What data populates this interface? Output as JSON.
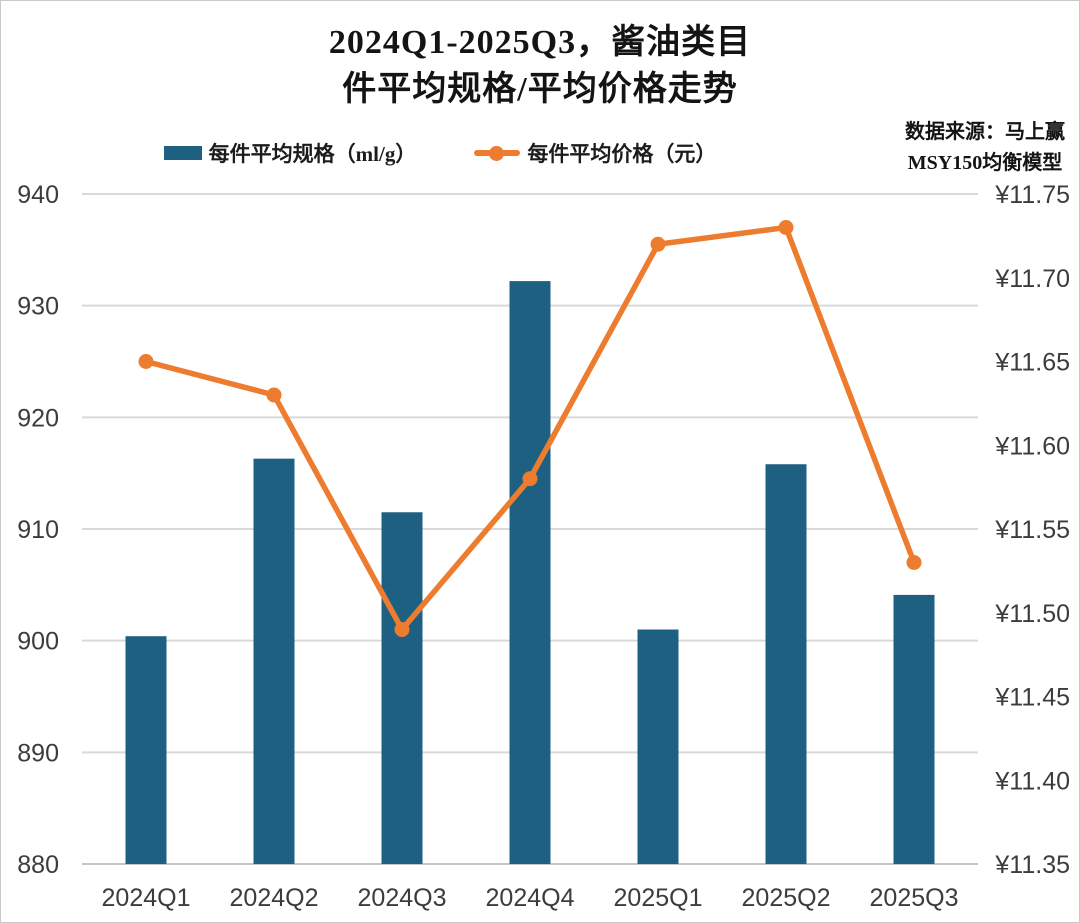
{
  "title": {
    "line1": "2024Q1-2025Q3，酱油类目",
    "line2": "件平均规格/平均价格走势"
  },
  "source": {
    "line1": "数据来源：马上赢",
    "line2": "MSY150均衡模型"
  },
  "legend": [
    {
      "label": "每件平均规格（ml/g）",
      "marker": "bar-swatch",
      "color": "#1E6082"
    },
    {
      "label": "每件平均价格（元）",
      "marker": "line-with-dot-swatch",
      "color": "#ED7C2F"
    }
  ],
  "colors": {
    "bar": "#1E6082",
    "line": "#ED7C2F",
    "grid": "#D9D9D9",
    "baseline": "#C6C6C6",
    "axis_text": "#3C3C3C"
  },
  "chart_data": {
    "type": "bar",
    "subtype": "combo bar+line, dual axis",
    "title": "2024Q1-2025Q3，酱油类目 件平均规格/平均价格走势",
    "categories": [
      "2024Q1",
      "2024Q2",
      "2024Q3",
      "2024Q4",
      "2025Q1",
      "2025Q2",
      "2025Q3"
    ],
    "series": [
      {
        "name": "每件平均规格（ml/g）",
        "type": "bar",
        "axis": "left",
        "color": "#1E6082",
        "values": [
          900.4,
          916.3,
          911.5,
          932.2,
          901.0,
          915.8,
          904.1
        ]
      },
      {
        "name": "每件平均价格（元）",
        "type": "line",
        "axis": "right",
        "color": "#ED7C2F",
        "values": [
          11.65,
          11.63,
          11.49,
          11.58,
          11.72,
          11.73,
          11.53
        ]
      }
    ],
    "left_axis": {
      "min": 880,
      "max": 940,
      "step": 10,
      "ticks": [
        "880",
        "890",
        "900",
        "910",
        "920",
        "930",
        "940"
      ]
    },
    "right_axis": {
      "min": 11.35,
      "max": 11.75,
      "step": 0.05,
      "prefix": "¥",
      "ticks": [
        "¥11.35",
        "¥11.40",
        "¥11.45",
        "¥11.50",
        "¥11.55",
        "¥11.60",
        "¥11.65",
        "¥11.70",
        "¥11.75"
      ]
    },
    "grid": "horizontal gridlines at left-axis intervals",
    "legend_position": "top-center"
  }
}
